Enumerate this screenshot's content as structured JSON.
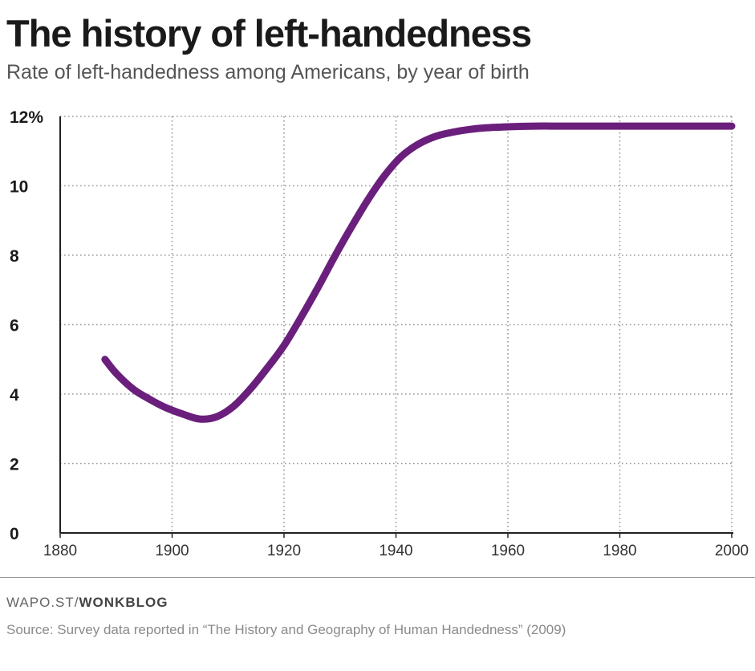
{
  "header": {
    "title": "The history of left-handedness",
    "subtitle": "Rate of left-handedness among Americans, by year of birth"
  },
  "footer": {
    "credit_prefix": "WAPO.ST/",
    "credit_strong": "WONKBLOG",
    "source": "Source: Survey data reported in “The History and Geography of Human Handedness” (2009)"
  },
  "colors": {
    "line": "#6b1f7c",
    "grid": "#9a9a9a",
    "axis": "#222222"
  },
  "chart_data": {
    "type": "line",
    "title": "The history of left-handedness",
    "subtitle": "Rate of left-handedness among Americans, by year of birth",
    "xlabel": "",
    "ylabel": "",
    "xlim": [
      1880,
      2000
    ],
    "ylim": [
      0,
      12
    ],
    "xticks": [
      1880,
      1900,
      1920,
      1940,
      1960,
      1980,
      2000
    ],
    "xtick_labels": [
      "1880",
      "1900",
      "1920",
      "1940",
      "1960",
      "1980",
      "2000"
    ],
    "yticks": [
      0,
      2,
      4,
      6,
      8,
      10,
      12
    ],
    "ytick_labels": [
      "0",
      "2",
      "4",
      "6",
      "8",
      "10",
      "12%"
    ],
    "grid": true,
    "series": [
      {
        "name": "Rate of left-handedness",
        "x": [
          1888,
          1890,
          1893,
          1896,
          1899,
          1902,
          1905,
          1908,
          1911,
          1914,
          1917,
          1920,
          1923,
          1926,
          1929,
          1932,
          1935,
          1938,
          1941,
          1944,
          1947,
          1950,
          1953,
          1956,
          1960,
          1965,
          1970,
          1980,
          1990,
          2000
        ],
        "y": [
          5.0,
          4.6,
          4.15,
          3.85,
          3.6,
          3.42,
          3.28,
          3.35,
          3.65,
          4.15,
          4.75,
          5.4,
          6.2,
          7.05,
          7.95,
          8.8,
          9.6,
          10.3,
          10.85,
          11.2,
          11.42,
          11.54,
          11.62,
          11.67,
          11.7,
          11.72,
          11.72,
          11.72,
          11.72,
          11.72
        ]
      }
    ]
  }
}
